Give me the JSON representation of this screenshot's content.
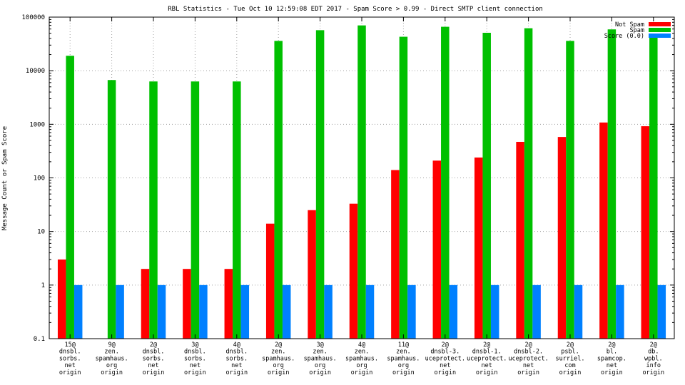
{
  "chart_data": {
    "type": "bar",
    "title": "RBL Statistics - Tue Oct 10 12:59:08 EDT 2017 - Spam Score > 0.99 - Direct SMTP client connection",
    "ylabel": "Message Count or Spam Score",
    "xlabel": "",
    "yscale": "log",
    "ylim": [
      0.1,
      100000
    ],
    "yticks": [
      "0.1",
      "1",
      "10",
      "100",
      "1000",
      "10000",
      "100000"
    ],
    "grid": true,
    "legend_position": "top-right",
    "categories": [
      [
        "15@",
        "dnsbl.",
        "sorbs.",
        "net",
        "origin"
      ],
      [
        "9@",
        "zen.",
        "spamhaus.",
        "org",
        "origin"
      ],
      [
        "2@",
        "dnsbl.",
        "sorbs.",
        "net",
        "origin"
      ],
      [
        "3@",
        "dnsbl.",
        "sorbs.",
        "net",
        "origin"
      ],
      [
        "4@",
        "dnsbl.",
        "sorbs.",
        "net",
        "origin"
      ],
      [
        "2@",
        "zen.",
        "spamhaus.",
        "org",
        "origin"
      ],
      [
        "3@",
        "zen.",
        "spamhaus.",
        "org",
        "origin"
      ],
      [
        "4@",
        "zen.",
        "spamhaus.",
        "org",
        "origin"
      ],
      [
        "11@",
        "zen.",
        "spamhaus.",
        "org",
        "origin"
      ],
      [
        "2@",
        "dnsbl-3.",
        "uceprotect.",
        "net",
        "origin"
      ],
      [
        "2@",
        "dnsbl-1.",
        "uceprotect.",
        "net",
        "origin"
      ],
      [
        "2@",
        "dnsbl-2.",
        "uceprotect.",
        "net",
        "origin"
      ],
      [
        "2@",
        "psbl.",
        "surriel.",
        "com",
        "origin"
      ],
      [
        "2@",
        "bl.",
        "spamcop.",
        "net",
        "origin"
      ],
      [
        "2@",
        "db.",
        "wpbl.",
        "info",
        "origin"
      ]
    ],
    "series": [
      {
        "name": "Not Spam",
        "color": "#ff0000",
        "values": [
          3,
          null,
          2,
          2,
          2,
          14,
          25,
          33,
          140,
          210,
          240,
          470,
          580,
          1080,
          920
        ]
      },
      {
        "name": "Spam",
        "color": "#00c000",
        "values": [
          19000,
          6700,
          6300,
          6300,
          6300,
          36000,
          57000,
          70000,
          43000,
          66000,
          51000,
          62000,
          36000,
          59000,
          48000
        ]
      },
      {
        "name": "Score (0.0)",
        "color": "#0080ff",
        "values": [
          1,
          1,
          1,
          1,
          1,
          1,
          1,
          1,
          1,
          1,
          1,
          1,
          1,
          1,
          1
        ]
      }
    ]
  }
}
